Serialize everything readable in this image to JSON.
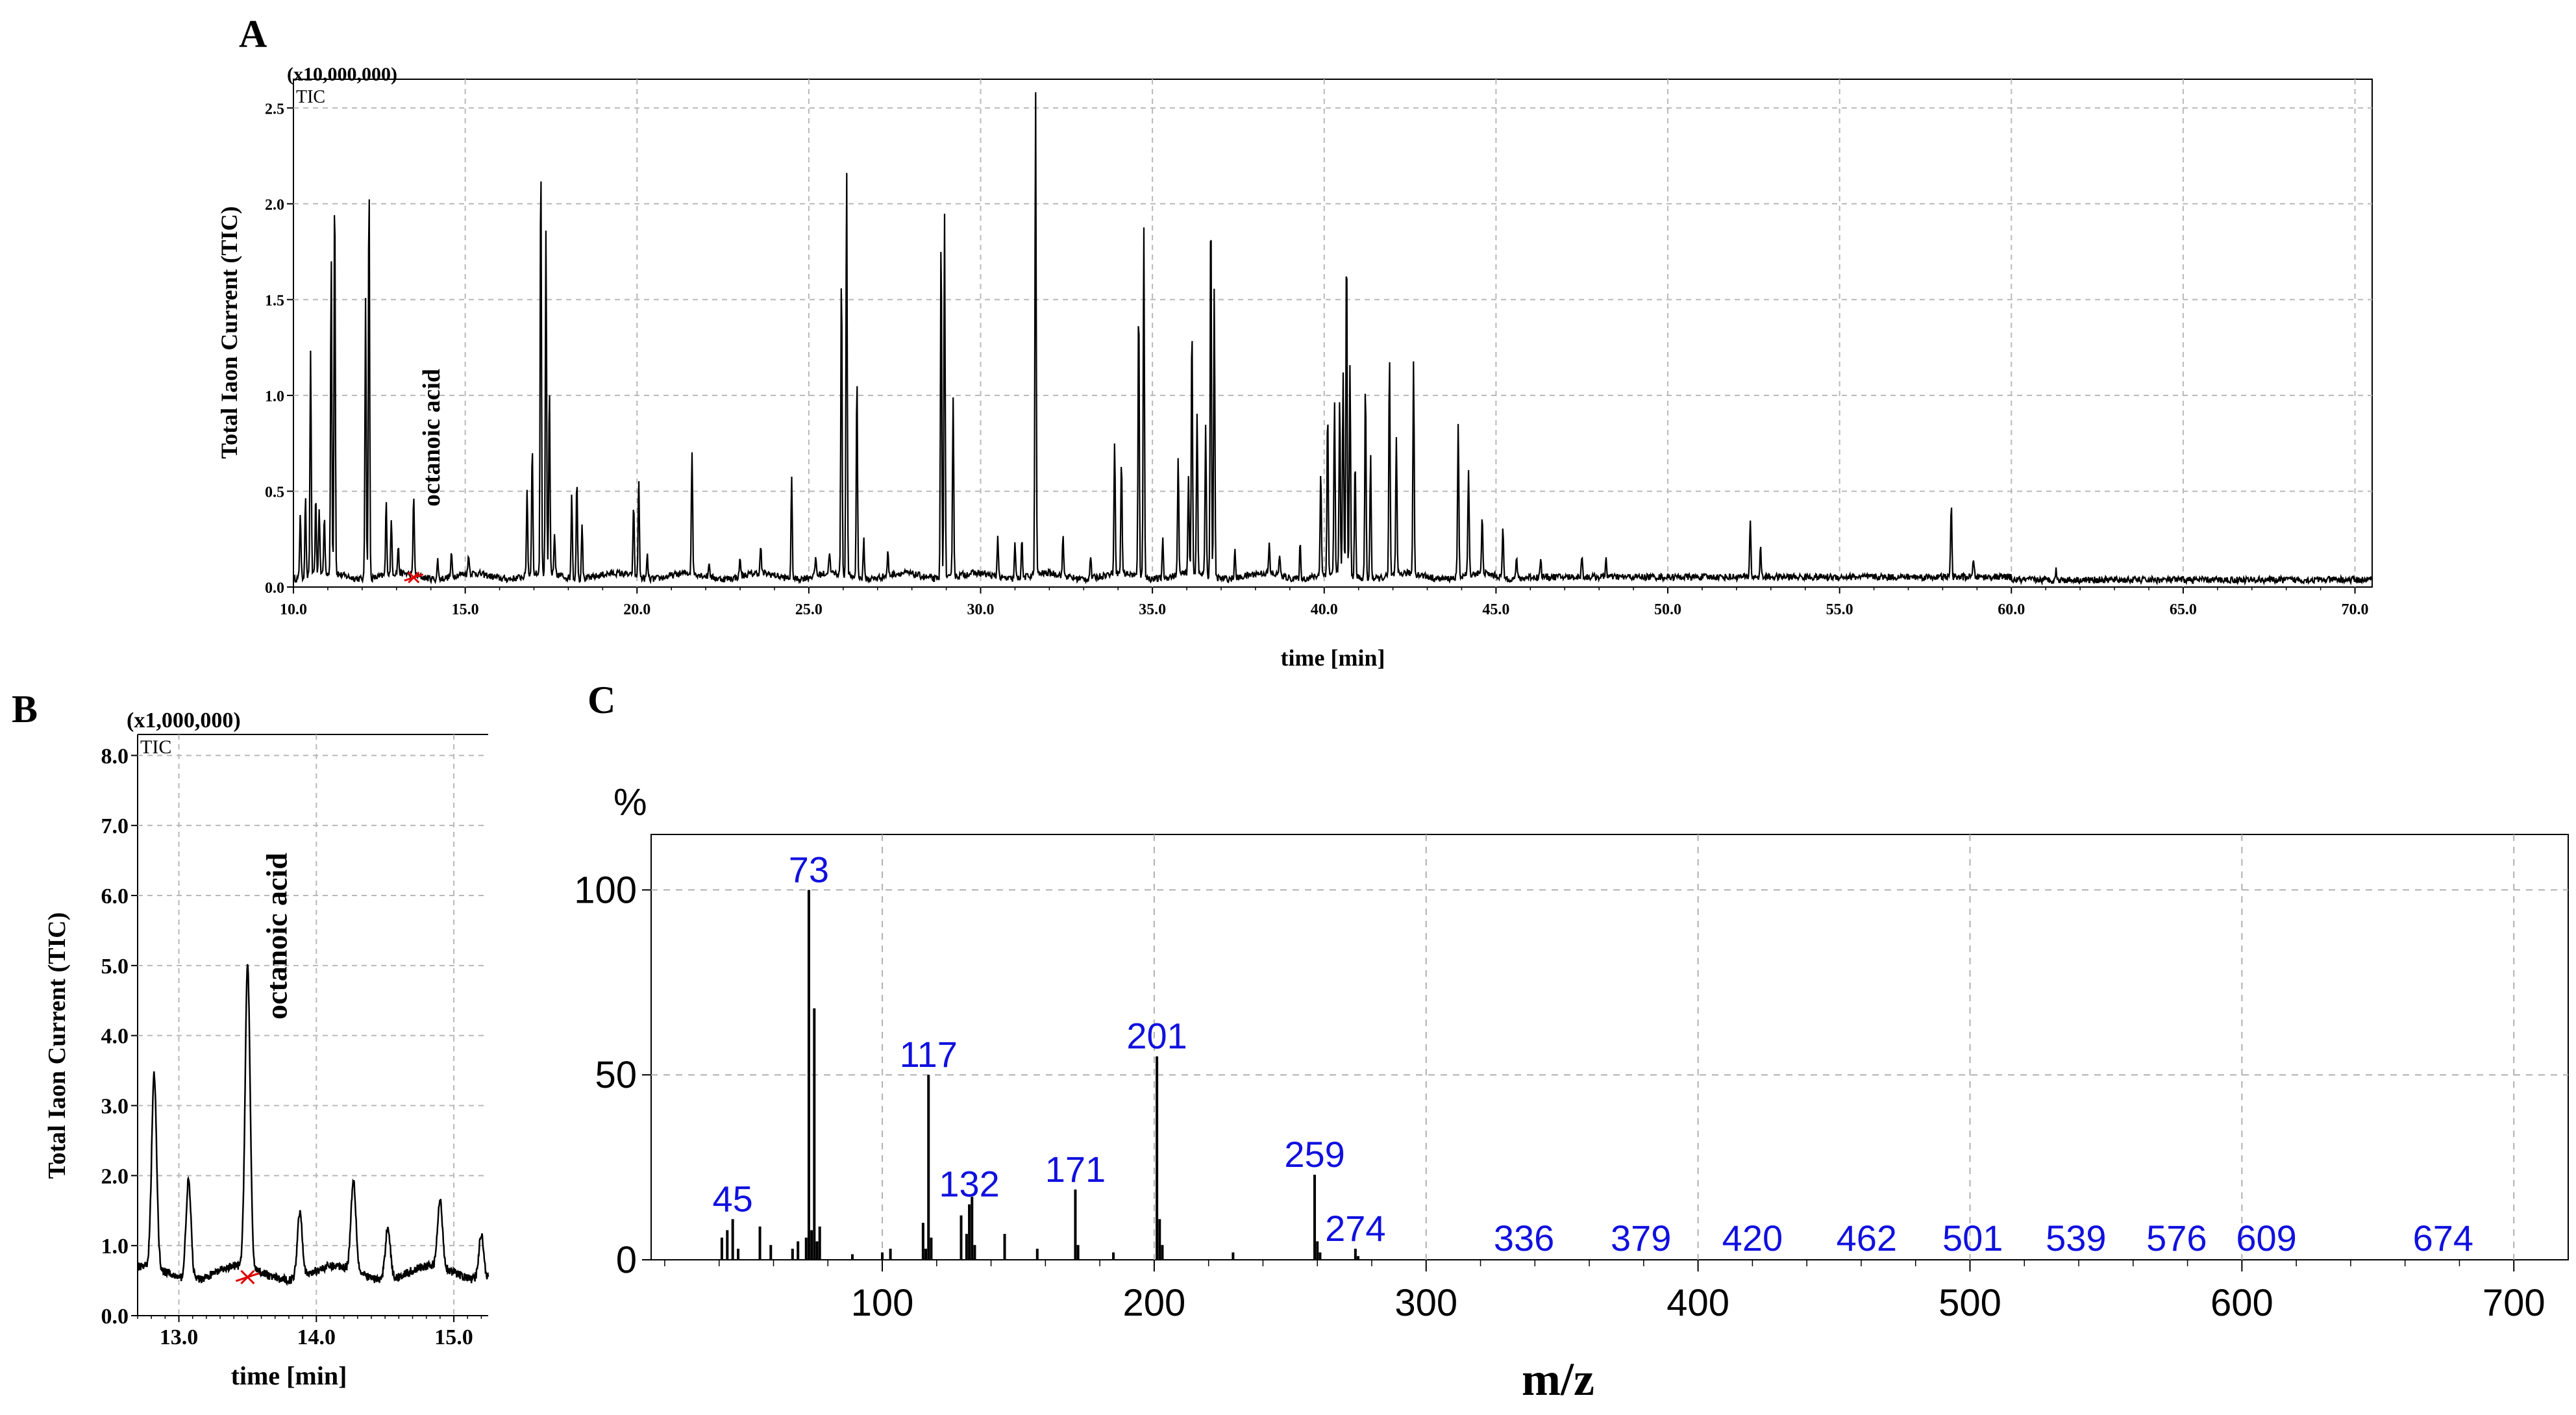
{
  "chart_data": [
    {
      "panel": "A",
      "type": "line",
      "scale_label": "(x10,000,000)",
      "trace_label": "TIC",
      "xlabel": "time [min]",
      "ylabel": "Total  Iaon Current (TIC)",
      "xlim": [
        10,
        70.5
      ],
      "ylim": [
        0,
        2.65
      ],
      "x_ticks": [
        "10.0",
        "15.0",
        "20.0",
        "25.0",
        "30.0",
        "35.0",
        "40.0",
        "45.0",
        "50.0",
        "55.0",
        "60.0",
        "65.0",
        "70.0"
      ],
      "y_ticks": [
        "0.0",
        "0.5",
        "1.0",
        "1.5",
        "2.0",
        "2.5"
      ],
      "annotation": {
        "text": "octanoic acid",
        "x": 13.5
      },
      "peaks": [
        [
          10.2,
          0.35
        ],
        [
          10.35,
          0.42
        ],
        [
          10.5,
          1.18
        ],
        [
          10.65,
          0.4
        ],
        [
          10.75,
          0.35
        ],
        [
          10.9,
          0.3
        ],
        [
          11.1,
          1.65
        ],
        [
          11.2,
          2.07
        ],
        [
          12.1,
          1.48
        ],
        [
          12.2,
          2.1
        ],
        [
          12.7,
          0.38
        ],
        [
          12.85,
          0.28
        ],
        [
          13.05,
          0.14
        ],
        [
          13.5,
          0.43
        ],
        [
          14.2,
          0.1
        ],
        [
          14.6,
          0.12
        ],
        [
          15.1,
          0.1
        ],
        [
          16.8,
          0.45
        ],
        [
          16.95,
          0.68
        ],
        [
          17.2,
          2.2
        ],
        [
          17.35,
          1.8
        ],
        [
          17.45,
          0.97
        ],
        [
          17.6,
          0.2
        ],
        [
          18.1,
          0.45
        ],
        [
          18.25,
          0.53
        ],
        [
          18.4,
          0.3
        ],
        [
          19.9,
          0.38
        ],
        [
          20.05,
          0.52
        ],
        [
          20.3,
          0.12
        ],
        [
          21.6,
          0.65
        ],
        [
          22.1,
          0.08
        ],
        [
          23.0,
          0.1
        ],
        [
          23.6,
          0.14
        ],
        [
          24.5,
          0.52
        ],
        [
          25.2,
          0.1
        ],
        [
          25.6,
          0.12
        ],
        [
          25.95,
          1.6
        ],
        [
          26.1,
          2.15
        ],
        [
          26.4,
          1.05
        ],
        [
          26.6,
          0.2
        ],
        [
          27.3,
          0.12
        ],
        [
          28.85,
          1.8
        ],
        [
          28.95,
          1.89
        ],
        [
          29.2,
          0.95
        ],
        [
          30.5,
          0.22
        ],
        [
          31.0,
          0.18
        ],
        [
          31.2,
          0.2
        ],
        [
          31.6,
          2.53
        ],
        [
          32.4,
          0.2
        ],
        [
          33.2,
          0.12
        ],
        [
          33.9,
          0.7
        ],
        [
          34.1,
          0.6
        ],
        [
          34.6,
          1.45
        ],
        [
          34.75,
          1.85
        ],
        [
          35.3,
          0.2
        ],
        [
          35.75,
          0.6
        ],
        [
          36.05,
          0.5
        ],
        [
          36.15,
          1.32
        ],
        [
          36.3,
          0.85
        ],
        [
          36.55,
          0.8
        ],
        [
          36.7,
          1.97
        ],
        [
          36.8,
          1.5
        ],
        [
          37.4,
          0.14
        ],
        [
          38.4,
          0.15
        ],
        [
          38.7,
          0.12
        ],
        [
          39.3,
          0.18
        ],
        [
          39.9,
          0.55
        ],
        [
          40.1,
          0.85
        ],
        [
          40.3,
          0.9
        ],
        [
          40.45,
          0.92
        ],
        [
          40.55,
          1.05
        ],
        [
          40.65,
          1.75
        ],
        [
          40.75,
          1.1
        ],
        [
          40.9,
          0.6
        ],
        [
          41.2,
          1.03
        ],
        [
          41.35,
          0.65
        ],
        [
          41.9,
          1.15
        ],
        [
          42.1,
          0.7
        ],
        [
          42.6,
          1.12
        ],
        [
          43.9,
          0.8
        ],
        [
          44.2,
          0.55
        ],
        [
          44.6,
          0.3
        ],
        [
          45.2,
          0.25
        ],
        [
          45.6,
          0.12
        ],
        [
          46.3,
          0.1
        ],
        [
          47.5,
          0.12
        ],
        [
          48.2,
          0.1
        ],
        [
          52.4,
          0.3
        ],
        [
          52.7,
          0.15
        ],
        [
          58.25,
          0.39
        ],
        [
          58.9,
          0.1
        ],
        [
          61.3,
          0.05
        ]
      ]
    },
    {
      "panel": "B",
      "type": "line",
      "scale_label": "(x1,000,000)",
      "trace_label": "TIC",
      "xlabel": "time [min]",
      "ylabel": "Total  Iaon Current (TIC)",
      "xlim": [
        12.7,
        15.25
      ],
      "ylim": [
        0,
        8.3
      ],
      "x_ticks": [
        "13.0",
        "14.0",
        "15.0"
      ],
      "y_ticks": [
        "0.0",
        "1.0",
        "2.0",
        "3.0",
        "4.0",
        "5.0",
        "6.0",
        "7.0",
        "8.0"
      ],
      "annotation": {
        "text": "octanoic acid",
        "x": 13.5
      },
      "peaks": [
        [
          12.82,
          2.75
        ],
        [
          13.07,
          1.42
        ],
        [
          13.5,
          4.32
        ],
        [
          13.88,
          0.95
        ],
        [
          14.27,
          1.3
        ],
        [
          14.52,
          0.75
        ],
        [
          14.9,
          0.95
        ],
        [
          15.2,
          0.65
        ]
      ]
    },
    {
      "panel": "C",
      "type": "bar",
      "ylabel": "%",
      "xlabel": "m/z",
      "xlim": [
        15,
        720
      ],
      "ylim": [
        0,
        115
      ],
      "x_ticks": [
        "100",
        "200",
        "300",
        "400",
        "500",
        "600",
        "700"
      ],
      "y_ticks": [
        "0",
        "50",
        "100"
      ],
      "values": [
        [
          41,
          6
        ],
        [
          43,
          8
        ],
        [
          45,
          11
        ],
        [
          47,
          3
        ],
        [
          55,
          9
        ],
        [
          59,
          4
        ],
        [
          67,
          3
        ],
        [
          69,
          5
        ],
        [
          72,
          6
        ],
        [
          73,
          100
        ],
        [
          74,
          8
        ],
        [
          75,
          68
        ],
        [
          76,
          5
        ],
        [
          77,
          9
        ],
        [
          89,
          1.5
        ],
        [
          100,
          2
        ],
        [
          103,
          3
        ],
        [
          115,
          10
        ],
        [
          116,
          3
        ],
        [
          117,
          50
        ],
        [
          118,
          6
        ],
        [
          129,
          12
        ],
        [
          131,
          7
        ],
        [
          132,
          15
        ],
        [
          133,
          17
        ],
        [
          134,
          4
        ],
        [
          145,
          7
        ],
        [
          157,
          3
        ],
        [
          171,
          19
        ],
        [
          172,
          4
        ],
        [
          185,
          2
        ],
        [
          201,
          55
        ],
        [
          202,
          11
        ],
        [
          203,
          4
        ],
        [
          229,
          2
        ],
        [
          259,
          23
        ],
        [
          260,
          5
        ],
        [
          261,
          2
        ],
        [
          274,
          3
        ],
        [
          275,
          1
        ]
      ],
      "labels": [
        "45",
        "73",
        "117",
        "132",
        "171",
        "201",
        "259",
        "274",
        "336",
        "379",
        "420",
        "462",
        "501",
        "539",
        "576",
        "609",
        "674"
      ]
    }
  ]
}
